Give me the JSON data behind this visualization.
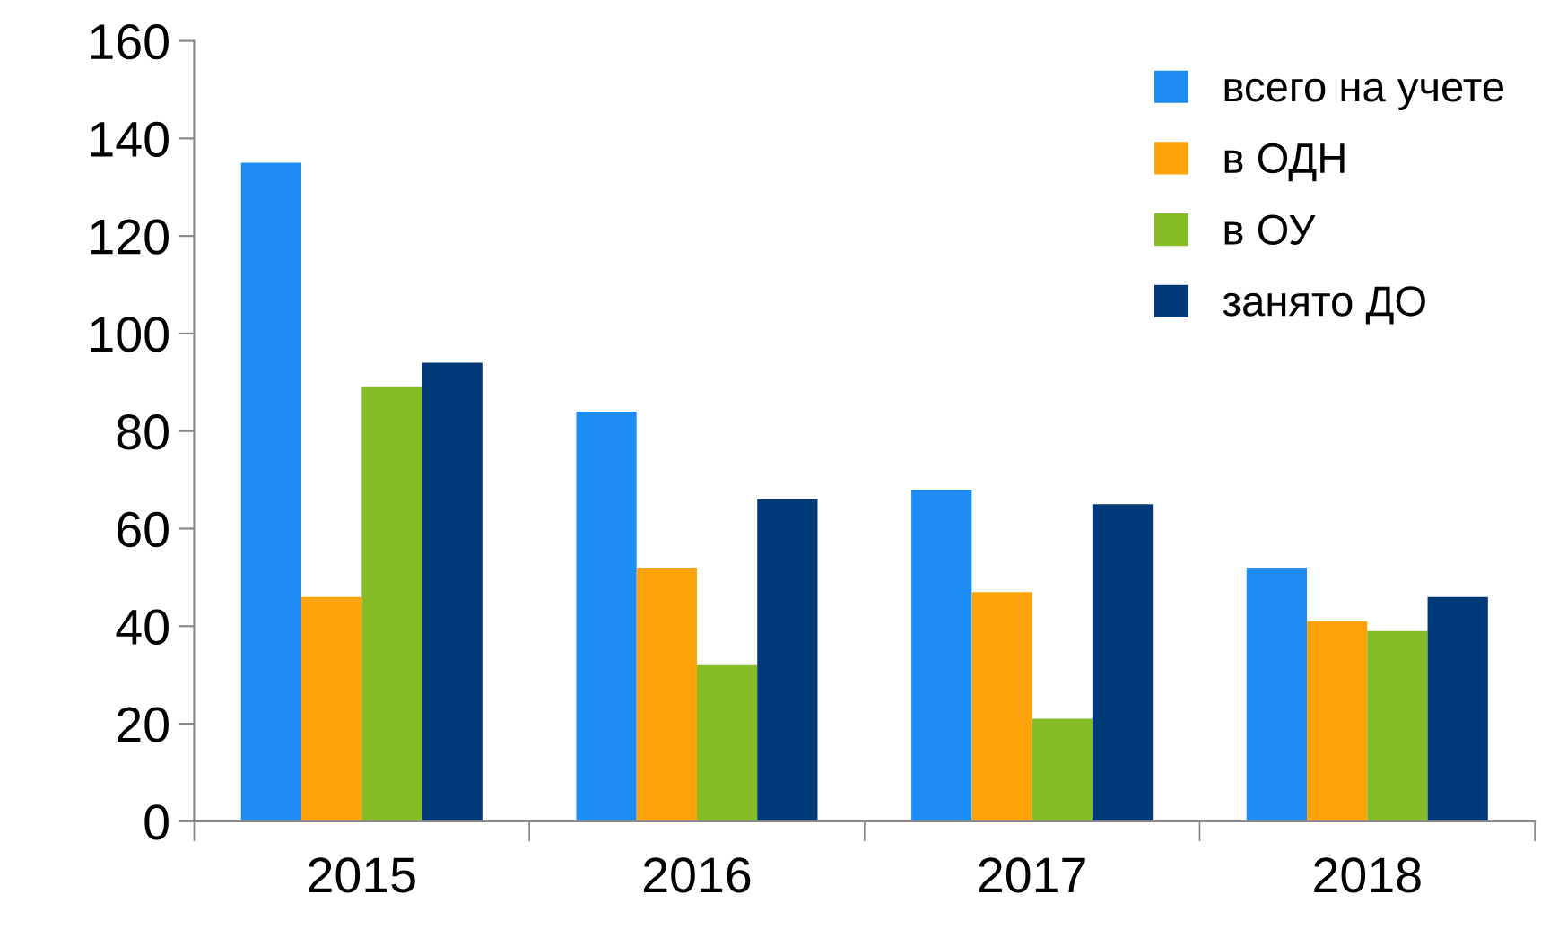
{
  "chart_data": {
    "type": "bar",
    "categories": [
      "2015",
      "2016",
      "2017",
      "2018"
    ],
    "series": [
      {
        "name": "всего на учете",
        "color": "#1e8cf5",
        "values": [
          135,
          84,
          68,
          52
        ]
      },
      {
        "name": "в ОДН",
        "color": "#ffa30a",
        "values": [
          46,
          52,
          47,
          41
        ]
      },
      {
        "name": "в ОУ",
        "color": "#86bc25",
        "values": [
          89,
          32,
          21,
          39
        ]
      },
      {
        "name": "занято ДО",
        "color": "#003a78",
        "values": [
          94,
          66,
          65,
          46
        ]
      }
    ],
    "ylim": [
      0,
      160
    ],
    "yticks": [
      0,
      20,
      40,
      60,
      80,
      100,
      120,
      140,
      160
    ],
    "grid": false,
    "legend": "top right"
  }
}
